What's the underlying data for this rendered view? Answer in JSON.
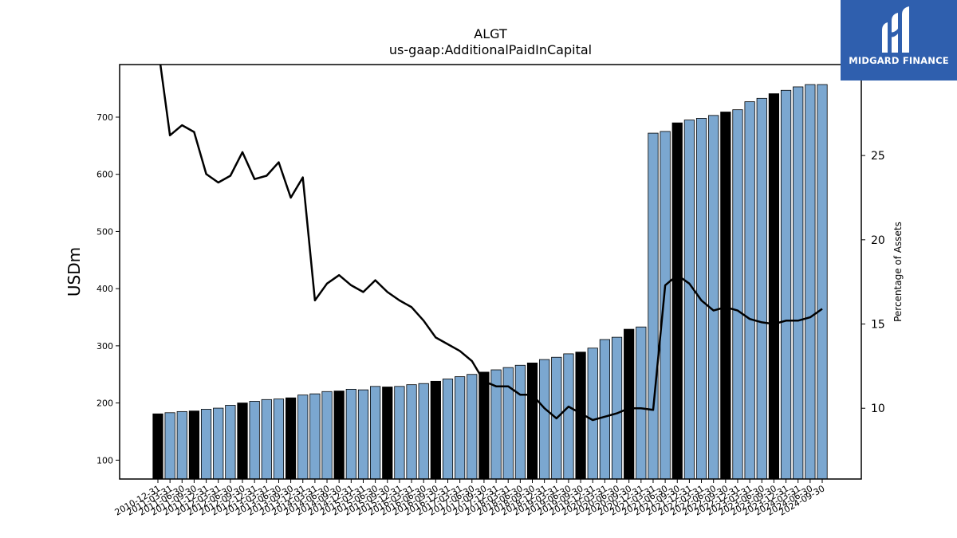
{
  "logo": {
    "text": "MIDGARD FINANCE",
    "icon": "midgard-m-icon",
    "color": "#2f5fae"
  },
  "colors": {
    "bar": "#7ba7d0",
    "highlight_bar": "#000000",
    "line": "#000000"
  },
  "chart_data": {
    "type": "bar",
    "title": "ALGT",
    "subtitle": "us-gaap:AdditionalPaidInCapital",
    "ylabel": "USDm",
    "y2label": "Percentage of Assets",
    "ylim": [
      67,
      792
    ],
    "y2lim": [
      5.8,
      30.4
    ],
    "yticks": [
      100,
      200,
      300,
      400,
      500,
      600,
      700
    ],
    "y2ticks": [
      10,
      15,
      20,
      25
    ],
    "grid": false,
    "categories": [
      "2010-12-31",
      "2011-03-31",
      "2011-06-30",
      "2011-09-30",
      "2011-12-31",
      "2012-03-31",
      "2012-06-30",
      "2012-09-30",
      "2012-12-31",
      "2013-03-31",
      "2013-06-30",
      "2013-09-30",
      "2013-12-31",
      "2014-03-31",
      "2014-06-30",
      "2014-09-30",
      "2014-12-31",
      "2015-03-31",
      "2015-06-30",
      "2015-09-30",
      "2015-12-31",
      "2016-03-31",
      "2016-06-30",
      "2016-09-30",
      "2016-12-31",
      "2017-03-31",
      "2017-06-30",
      "2017-09-30",
      "2017-12-31",
      "2018-03-31",
      "2018-06-30",
      "2018-09-30",
      "2018-12-31",
      "2019-03-31",
      "2019-06-30",
      "2019-09-30",
      "2019-12-31",
      "2020-03-31",
      "2020-06-30",
      "2020-09-30",
      "2020-12-31",
      "2021-03-31",
      "2021-06-30",
      "2021-09-30",
      "2021-12-31",
      "2022-03-31",
      "2022-06-30",
      "2022-09-30",
      "2022-12-31",
      "2023-03-31",
      "2023-06-30",
      "2023-09-30",
      "2023-12-31",
      "2024-03-31",
      "2024-06-30",
      "2024-09-30"
    ],
    "tick_labels": [
      "2010-12-31",
      "2011-03-31",
      "2011-06-30",
      "2011-09-30",
      "2011-12-31",
      "2012-03-31",
      "2012-06-30",
      "2012-09-30",
      "2012-12-31",
      "2013-03-31",
      "2013-06-30",
      "2013-09-30",
      "2013-12-31",
      "2014-03-31",
      "2014-06-30",
      "2014-09-30",
      "2014-12-31",
      "2015-03-31",
      "2015-06-30",
      "2015-09-30",
      "2015-12-31",
      "2016-03-31",
      "2016-06-30",
      "2016-09-30",
      "2016-12-31",
      "2017-03-31",
      "2017-06-30",
      "2017-09-30",
      "2017-12-31",
      "2018-03-31",
      "2018-06-30",
      "2018-09-30",
      "2018-12-31",
      "2019-03-31",
      "2019-06-30",
      "2019-09-30",
      "2019-12-31",
      "2020-03-31",
      "2020-06-30",
      "2020-09-30",
      "2020-12-31",
      "2021-03-31",
      "2021-06-30",
      "2021-09-30",
      "2021-12-31",
      "2022-03-31",
      "2022-06-30",
      "2022-09-30",
      "2022-12-31",
      "2023-03-31",
      "2023-06-30",
      "2023-09-30",
      "2023-12-31",
      "2024-03-31",
      "2024-06-30",
      "2024-09-30"
    ],
    "series": [
      {
        "axis": "left",
        "kind": "bar",
        "values": [
          181,
          183,
          185,
          186,
          189,
          191,
          196,
          200,
          203,
          206,
          207,
          209,
          214,
          216,
          220,
          221,
          224,
          223,
          229,
          228,
          229,
          232,
          234,
          238,
          242,
          246,
          250,
          254,
          258,
          262,
          266,
          270,
          276,
          280,
          286,
          289,
          296,
          311,
          315,
          329,
          333,
          672,
          675,
          690,
          695,
          698,
          703,
          709,
          713,
          727,
          733,
          741,
          747,
          753,
          757,
          757
        ],
        "highlight": [
          true,
          false,
          false,
          true,
          false,
          false,
          false,
          true,
          false,
          false,
          false,
          true,
          false,
          false,
          false,
          true,
          false,
          false,
          false,
          true,
          false,
          false,
          false,
          true,
          false,
          false,
          false,
          true,
          false,
          false,
          false,
          true,
          false,
          false,
          false,
          true,
          false,
          false,
          false,
          true,
          false,
          false,
          false,
          true,
          false,
          false,
          false,
          true,
          false,
          false,
          false,
          true,
          false,
          false,
          false,
          false
        ]
      },
      {
        "axis": "right",
        "kind": "line",
        "values": [
          31.5,
          26.2,
          26.8,
          26.4,
          23.9,
          23.4,
          23.8,
          25.2,
          23.6,
          23.8,
          24.6,
          22.5,
          23.7,
          16.4,
          17.4,
          17.9,
          17.3,
          16.9,
          17.6,
          16.9,
          16.4,
          16.0,
          15.2,
          14.2,
          13.8,
          13.4,
          12.8,
          11.6,
          11.3,
          11.3,
          10.8,
          10.8,
          10.0,
          9.4,
          10.1,
          9.7,
          9.3,
          9.5,
          9.7,
          10.0,
          10.0,
          9.9,
          17.3,
          17.9,
          17.4,
          16.4,
          15.8,
          16.0,
          15.8,
          15.3,
          15.1,
          15.0,
          15.2,
          15.2,
          15.4,
          15.9
        ]
      }
    ]
  }
}
